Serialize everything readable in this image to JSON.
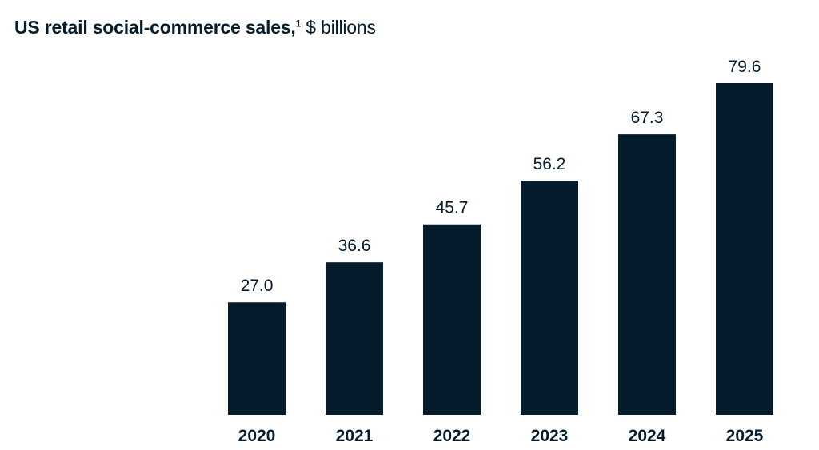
{
  "title": {
    "main": "US retail social-commerce sales,",
    "footnote_marker": "1",
    "unit": "$ billions"
  },
  "chart_data": {
    "type": "bar",
    "categories": [
      "2020",
      "2021",
      "2022",
      "2023",
      "2024",
      "2025"
    ],
    "values": [
      27.0,
      36.6,
      45.7,
      56.2,
      67.3,
      79.6
    ],
    "value_labels": [
      "27.0",
      "36.6",
      "45.7",
      "56.2",
      "67.3",
      "79.6"
    ],
    "title": "US retail social-commerce sales,",
    "xlabel": "",
    "ylabel": "$ billions",
    "ylim": [
      0,
      79.6
    ],
    "grid": false,
    "legend": "none",
    "bar_color": "#051c2c"
  }
}
